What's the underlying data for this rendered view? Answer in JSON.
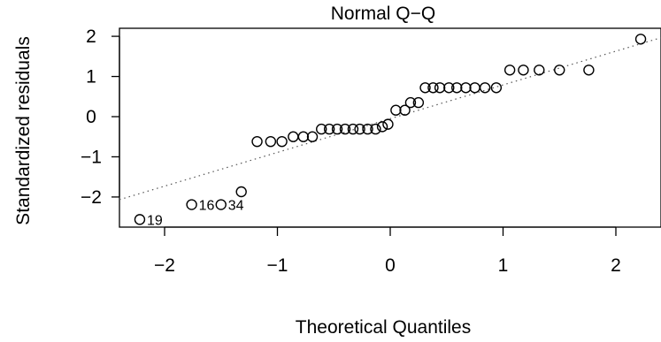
{
  "chart_data": {
    "type": "scatter",
    "title": "Normal Q−Q",
    "xlabel": "Theoretical Quantiles",
    "ylabel": "Standardized residuals",
    "xlim": [
      -2.4,
      2.4
    ],
    "ylim": [
      -2.75,
      2.2
    ],
    "grid": false,
    "x_ticks": [
      {
        "value": -2,
        "label": "−2"
      },
      {
        "value": -1,
        "label": "−1"
      },
      {
        "value": 0,
        "label": "0"
      },
      {
        "value": 1,
        "label": "1"
      },
      {
        "value": 2,
        "label": "2"
      }
    ],
    "y_ticks": [
      {
        "value": -2,
        "label": "−2"
      },
      {
        "value": -1,
        "label": "−1"
      },
      {
        "value": 0,
        "label": "0"
      },
      {
        "value": 1,
        "label": "1"
      },
      {
        "value": 2,
        "label": "2"
      }
    ],
    "reference_line": {
      "style": "dotted",
      "intercept": -0.05,
      "slope": 0.84
    },
    "points": [
      {
        "x": -2.22,
        "y": -2.56
      },
      {
        "x": -1.76,
        "y": -2.19
      },
      {
        "x": -1.5,
        "y": -2.19
      },
      {
        "x": -1.32,
        "y": -1.87
      },
      {
        "x": -1.18,
        "y": -0.62
      },
      {
        "x": -1.06,
        "y": -0.62
      },
      {
        "x": -0.96,
        "y": -0.62
      },
      {
        "x": -0.86,
        "y": -0.5
      },
      {
        "x": -0.77,
        "y": -0.5
      },
      {
        "x": -0.69,
        "y": -0.5
      },
      {
        "x": -0.61,
        "y": -0.31
      },
      {
        "x": -0.54,
        "y": -0.31
      },
      {
        "x": -0.47,
        "y": -0.31
      },
      {
        "x": -0.4,
        "y": -0.31
      },
      {
        "x": -0.33,
        "y": -0.31
      },
      {
        "x": -0.27,
        "y": -0.31
      },
      {
        "x": -0.2,
        "y": -0.31
      },
      {
        "x": -0.13,
        "y": -0.31
      },
      {
        "x": -0.07,
        "y": -0.25
      },
      {
        "x": -0.02,
        "y": -0.19
      },
      {
        "x": 0.05,
        "y": 0.16
      },
      {
        "x": 0.13,
        "y": 0.16
      },
      {
        "x": 0.18,
        "y": 0.35
      },
      {
        "x": 0.25,
        "y": 0.35
      },
      {
        "x": 0.31,
        "y": 0.72
      },
      {
        "x": 0.38,
        "y": 0.72
      },
      {
        "x": 0.44,
        "y": 0.72
      },
      {
        "x": 0.52,
        "y": 0.72
      },
      {
        "x": 0.59,
        "y": 0.72
      },
      {
        "x": 0.67,
        "y": 0.72
      },
      {
        "x": 0.75,
        "y": 0.72
      },
      {
        "x": 0.84,
        "y": 0.72
      },
      {
        "x": 0.94,
        "y": 0.72
      },
      {
        "x": 1.06,
        "y": 1.16
      },
      {
        "x": 1.18,
        "y": 1.16
      },
      {
        "x": 1.32,
        "y": 1.16
      },
      {
        "x": 1.5,
        "y": 1.16
      },
      {
        "x": 1.76,
        "y": 1.16
      },
      {
        "x": 2.22,
        "y": 1.93
      }
    ],
    "point_labels": [
      {
        "text": "19",
        "x": -2.22,
        "y": -2.56
      },
      {
        "text": "16",
        "x": -1.76,
        "y": -2.19
      },
      {
        "text": "34",
        "x": -1.5,
        "y": -2.19
      }
    ]
  }
}
